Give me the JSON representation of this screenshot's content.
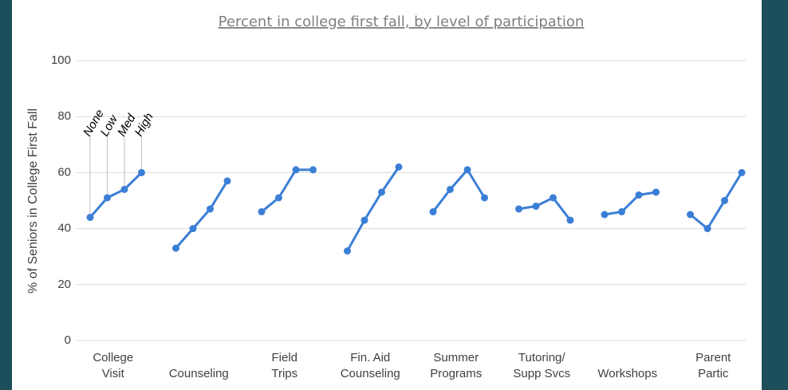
{
  "chart_data": {
    "type": "line",
    "title": "Percent in college first fall, by level of participation",
    "y_label": "% of Seniors in College First Fall",
    "levels": [
      "None",
      "Low",
      "Med",
      "High"
    ],
    "color": "#3a7fd5",
    "grid": true,
    "ylim": [
      0,
      100
    ],
    "yticks": [
      0,
      20,
      40,
      60,
      80,
      100
    ],
    "groups": [
      {
        "label": [
          "College",
          "Visit"
        ],
        "values": [
          44,
          51,
          54,
          60
        ]
      },
      {
        "label": [
          "Counseling"
        ],
        "values": [
          33,
          40,
          47,
          57
        ]
      },
      {
        "label": [
          "Field",
          "Trips"
        ],
        "values": [
          46,
          51,
          61,
          61
        ]
      },
      {
        "label": [
          "Fin. Aid",
          "Counseling"
        ],
        "values": [
          32,
          43,
          53,
          62
        ]
      },
      {
        "label": [
          "Summer",
          "Programs"
        ],
        "values": [
          46,
          54,
          61,
          51
        ]
      },
      {
        "label": [
          "Tutoring/",
          "Supp Svcs"
        ],
        "values": [
          47,
          48,
          51,
          43
        ]
      },
      {
        "label": [
          "Workshops"
        ],
        "values": [
          45,
          46,
          52,
          53
        ]
      },
      {
        "label": [
          "Parent",
          "Partic"
        ],
        "values": [
          45,
          40,
          50,
          60
        ]
      }
    ]
  }
}
